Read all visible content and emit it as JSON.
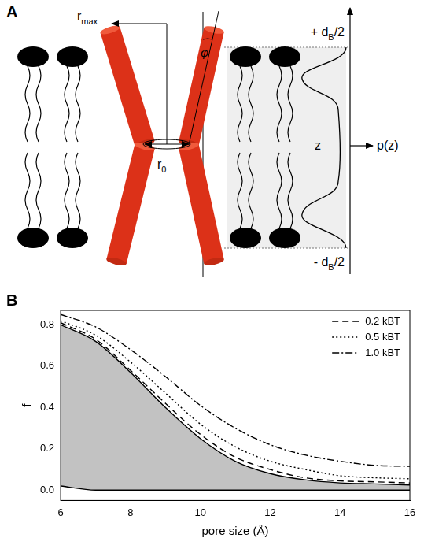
{
  "diagram": {
    "panel_label": "A",
    "labels": {
      "r_max": {
        "text": "r",
        "sub": "max"
      },
      "r_0": {
        "text": "r",
        "sub": "0"
      },
      "phi": {
        "text": "φ"
      },
      "top": {
        "text": "+ d",
        "sub": "B",
        "after": "/2"
      },
      "bottom": {
        "text": "- d",
        "sub": "B",
        "after": "/2"
      },
      "z": {
        "text": "z"
      },
      "p_z": {
        "text": "p(z)"
      }
    }
  },
  "chart_data": {
    "panel_label": "B",
    "type": "line",
    "x_label": "pore size (Å)",
    "y_label": "f",
    "x": [
      6,
      7,
      8,
      9,
      10,
      11,
      12,
      13,
      14,
      15,
      16
    ],
    "xlim": [
      6,
      16
    ],
    "xticks": [
      6,
      8,
      10,
      12,
      14,
      16
    ],
    "ylim": [
      -0.05,
      0.87
    ],
    "yticks": [
      {
        "value": 0,
        "label": "0.0"
      },
      0.2,
      0.4,
      0.6,
      0.8
    ],
    "grid": false,
    "legend": "upper right",
    "series": [
      {
        "color": "#000000",
        "line_style": "solid",
        "values": [
          0.02,
          0.0,
          0,
          0,
          0,
          0,
          0,
          0,
          0,
          0,
          0
        ]
      },
      {
        "type": "area",
        "color": "#000000",
        "line_style": "solid",
        "values": [
          0.8,
          0.72,
          0.57,
          0.4,
          0.25,
          0.14,
          0.08,
          0.05,
          0.035,
          0.03,
          0.025
        ]
      },
      {
        "name": "0.2 kBT",
        "color": "#000000",
        "line_style": "dashed",
        "values": [
          0.81,
          0.73,
          0.58,
          0.42,
          0.27,
          0.16,
          0.1,
          0.06,
          0.045,
          0.04,
          0.035
        ]
      },
      {
        "name": "0.5 kBT",
        "color": "#000000",
        "line_style": "dotted",
        "values": [
          0.82,
          0.75,
          0.62,
          0.47,
          0.32,
          0.21,
          0.14,
          0.1,
          0.07,
          0.06,
          0.055
        ]
      },
      {
        "name": "1.0 kBT",
        "color": "#000000",
        "line_style": "dashdot",
        "values": [
          0.85,
          0.79,
          0.68,
          0.55,
          0.41,
          0.3,
          0.22,
          0.17,
          0.14,
          0.12,
          0.115
        ]
      }
    ]
  }
}
